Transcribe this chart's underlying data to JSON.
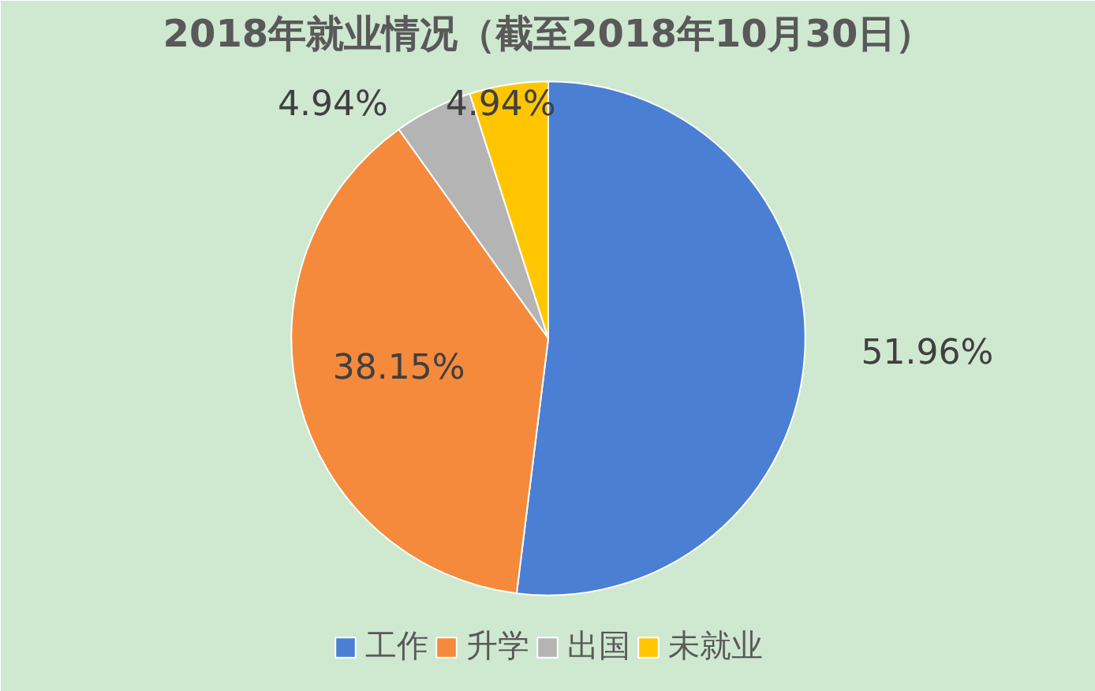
{
  "chart_data": {
    "type": "pie",
    "title": "2018年就业情况（截至2018年10月30日）",
    "categories": [
      "工作",
      "升学",
      "出国",
      "未就业"
    ],
    "values": [
      51.96,
      38.15,
      4.94,
      4.94
    ],
    "colors": [
      "#4a7fd4",
      "#f58a3c",
      "#b4b4b4",
      "#ffc600"
    ],
    "value_labels": [
      "51.96%",
      "38.15%",
      "4.94%",
      "4.94%"
    ],
    "legend": "bottom"
  }
}
